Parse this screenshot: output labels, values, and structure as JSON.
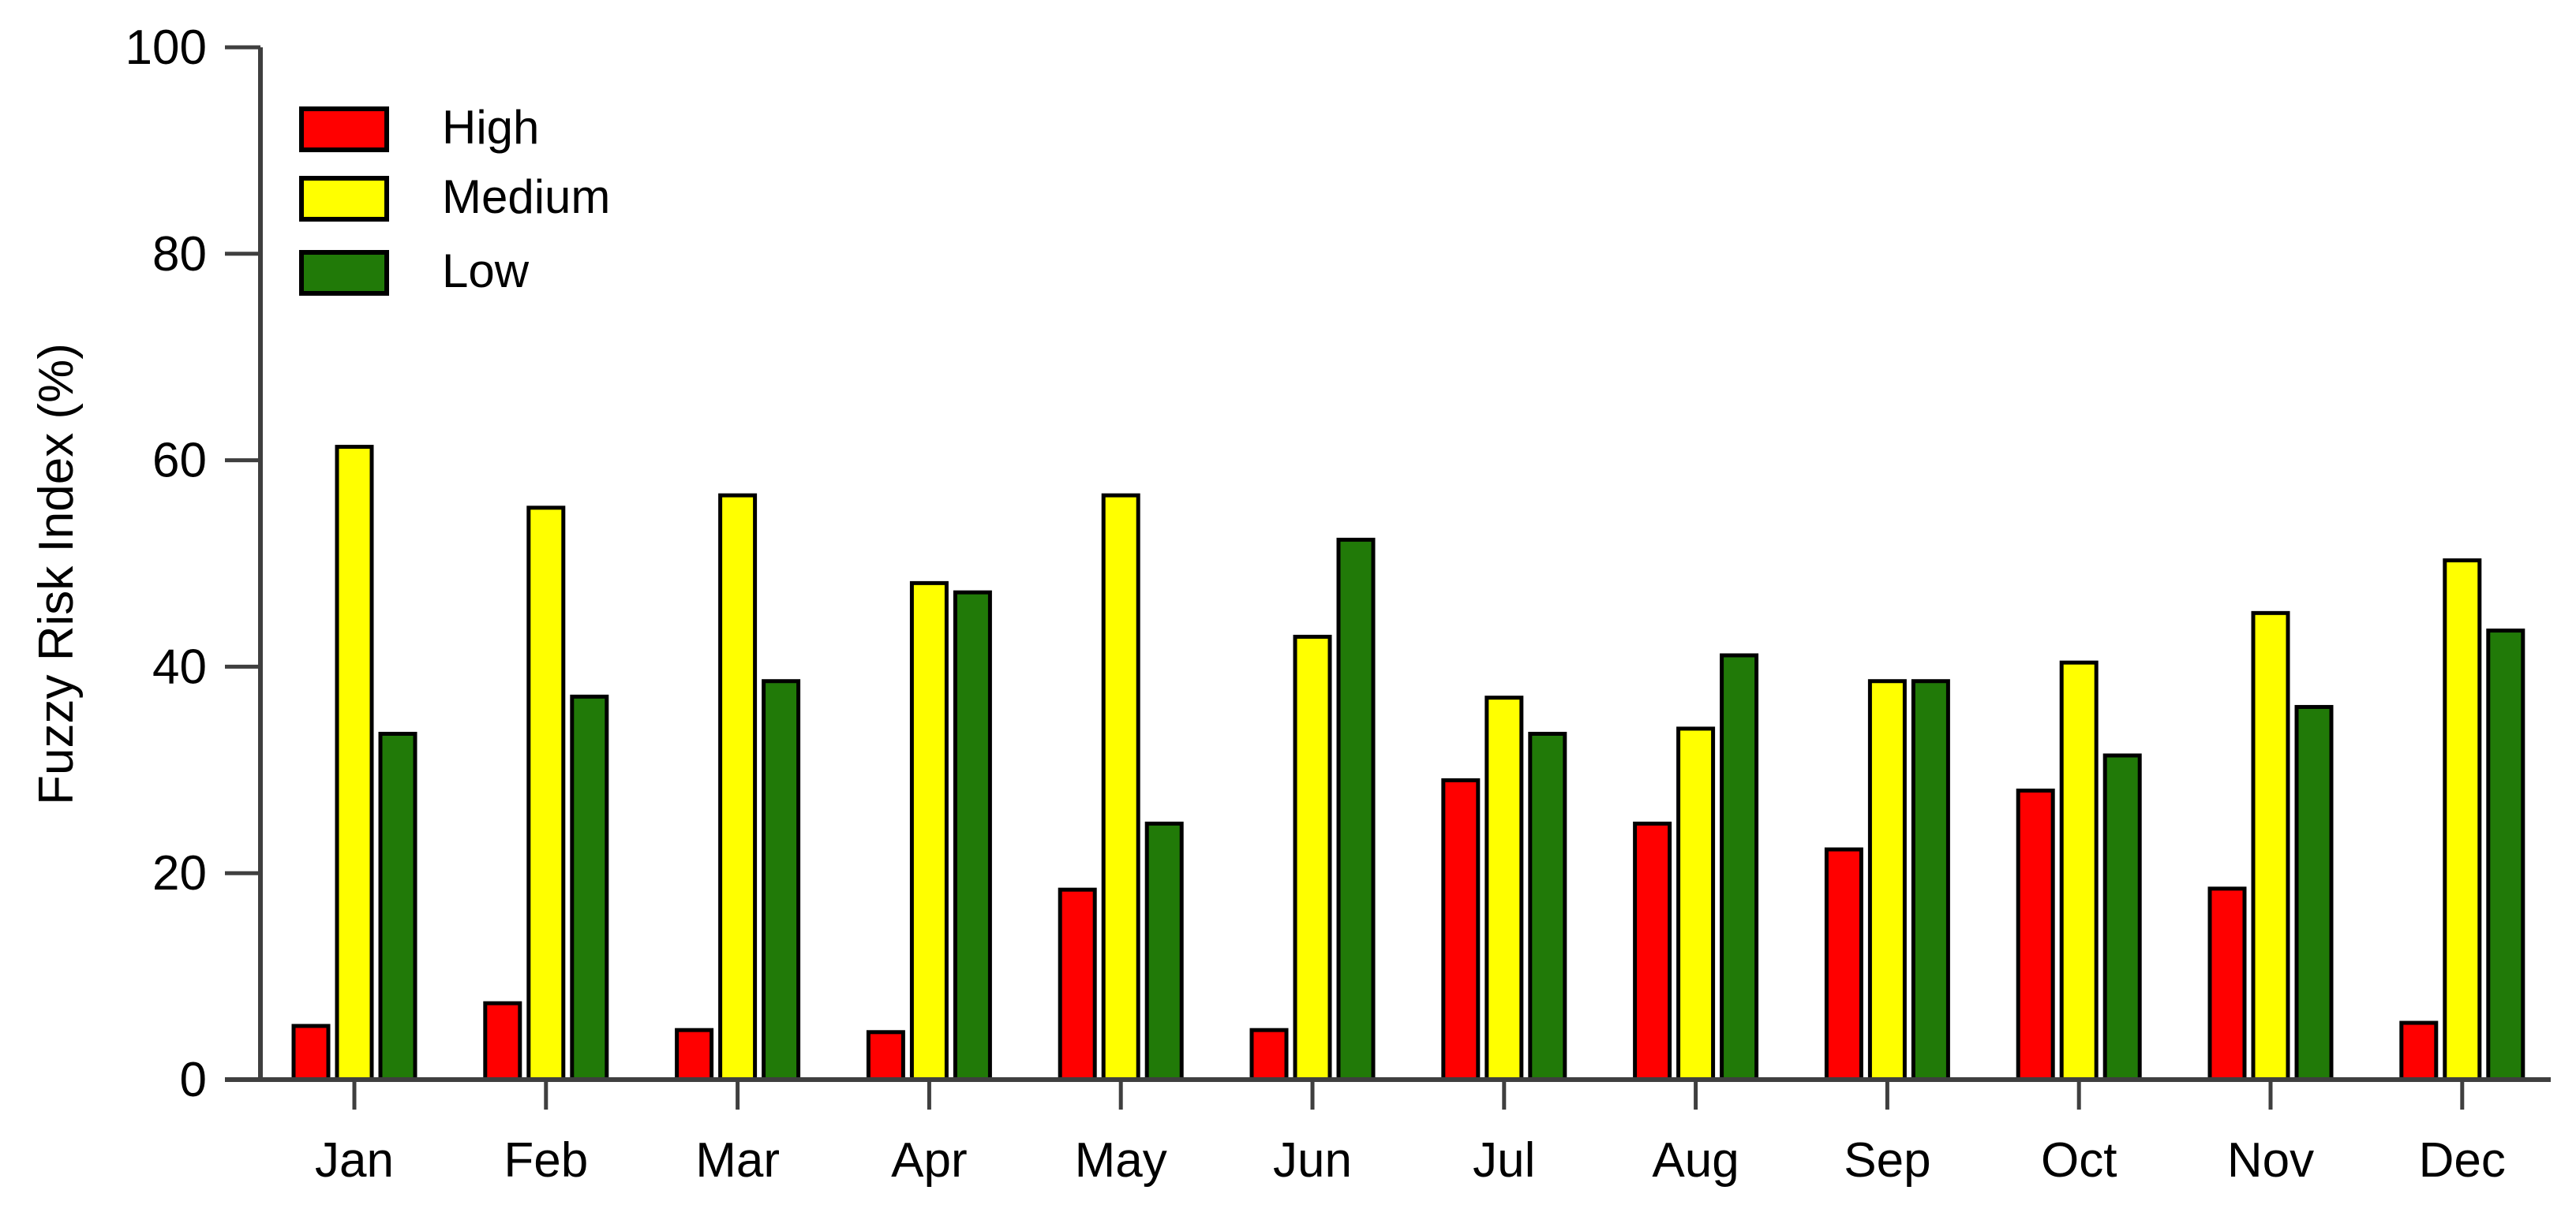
{
  "chart_data": {
    "type": "bar",
    "title": "",
    "xlabel": "",
    "ylabel": "Fuzzy Risk Index (%)",
    "ylim": [
      0,
      100
    ],
    "yticks": [
      0,
      20,
      40,
      60,
      80,
      100
    ],
    "grid": false,
    "legend_position": "upper-left",
    "categories": [
      "Jan",
      "Feb",
      "Mar",
      "Apr",
      "May",
      "Jun",
      "Jul",
      "Aug",
      "Sep",
      "Oct",
      "Nov",
      "Dec"
    ],
    "series": [
      {
        "name": "High",
        "color": "#ff0000",
        "values": [
          5.2,
          7.4,
          4.8,
          4.6,
          18.4,
          4.8,
          29.0,
          24.8,
          22.3,
          28.0,
          18.5,
          5.5
        ]
      },
      {
        "name": "Medium",
        "color": "#ffff00",
        "values": [
          61.3,
          55.4,
          56.6,
          48.1,
          56.6,
          42.9,
          37.0,
          34.0,
          38.6,
          40.4,
          45.2,
          50.3
        ]
      },
      {
        "name": "Low",
        "color": "#217a08",
        "values": [
          33.5,
          37.1,
          38.6,
          47.2,
          24.8,
          52.3,
          33.5,
          41.1,
          38.6,
          31.4,
          36.1,
          43.5
        ]
      }
    ],
    "colors": {
      "bar_outline": "#000000",
      "axis": "#3f3f3f",
      "text": "#000000",
      "background": "#ffffff"
    }
  }
}
